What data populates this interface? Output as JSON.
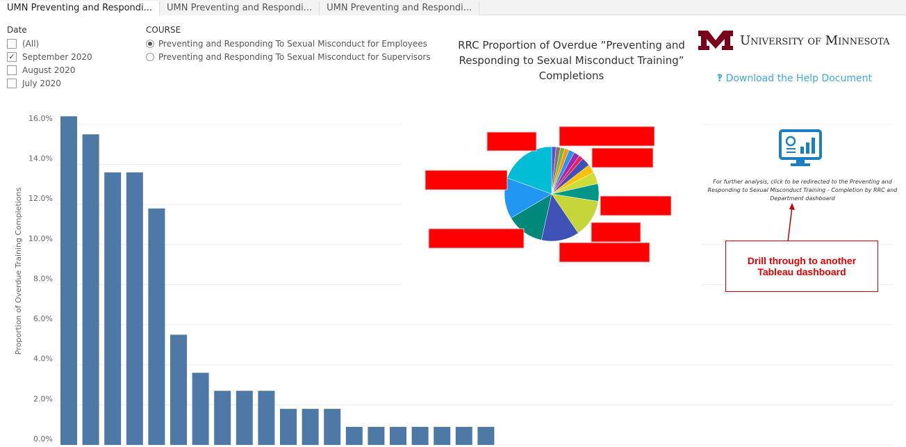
{
  "tabs": [
    "UMN Preventing and Respondi...",
    "UMN Preventing and Respondi...",
    "UMN Preventing and Respondi..."
  ],
  "date_filter": {
    "label": "Date",
    "options": [
      "(All)",
      "September 2020",
      "August 2020",
      "July 2020"
    ],
    "checked": [
      false,
      true,
      false,
      false
    ]
  },
  "course_filter": {
    "label": "COURSE",
    "options": [
      "Preventing and Responding To Sexual Misconduct for Employees",
      "Preventing and Responding To Sexual Misconduct for Supervisors"
    ],
    "selected": 0
  },
  "title": "RRC Proportion of Overdue ”Preventing and Responding to Sexual Misconduct Training” Completions",
  "logo": "University of Minnesota",
  "help_link": "Download the Help Document",
  "drill_text": "For further analysis, click to be redirected to the Preventing and Responding to Sexual Misconduct Training - Completion by RRC and Department dashboard",
  "callout": "Drill through to another Tableau dashboard",
  "chart_data": [
    {
      "type": "bar",
      "y_label": "Proportion of Overdue Training Completions",
      "categories": [
        null,
        null,
        null,
        null,
        null,
        null,
        null,
        null,
        null,
        null,
        null,
        null,
        null,
        null,
        null,
        null,
        null,
        null,
        null,
        null
      ],
      "values": [
        16.4,
        15.5,
        13.6,
        13.6,
        11.8,
        5.5,
        3.6,
        2.7,
        2.7,
        2.7,
        1.8,
        1.8,
        1.8,
        0.9,
        0.9,
        0.9,
        0.9,
        0.9,
        0.9,
        0.9
      ],
      "color": "#4e79a7",
      "ylim": [
        0,
        17
      ],
      "yticks": [
        {
          "value": 0,
          "label": "0.0%"
        },
        {
          "value": 2,
          "label": "2.0%"
        },
        {
          "value": 4,
          "label": "4.0%"
        },
        {
          "value": 6,
          "label": "6.0%"
        },
        {
          "value": 8,
          "label": "8.0%"
        },
        {
          "value": 10,
          "label": "10.0%"
        },
        {
          "value": 12,
          "label": "12.0%"
        },
        {
          "value": 14,
          "label": "14.0%"
        },
        {
          "value": 16,
          "label": "16.0%"
        }
      ],
      "grid": true
    },
    {
      "type": "pie",
      "values": [
        1.5,
        1.5,
        1.5,
        1.5,
        2,
        2,
        1.5,
        3,
        3,
        4,
        6,
        13,
        13,
        13,
        14,
        19.5
      ],
      "colors": [
        "#5a4fcf",
        "#8d6e63",
        "#7cb342",
        "#ff9800",
        "#2196f3",
        "#9c27b0",
        "#e91e63",
        "#3f51b5",
        "#ffc107",
        "#cddc39",
        "#009688",
        "#c6d63a",
        "#3f51b5",
        "#00897b",
        "#2196f3",
        "#00bcd4"
      ]
    }
  ]
}
